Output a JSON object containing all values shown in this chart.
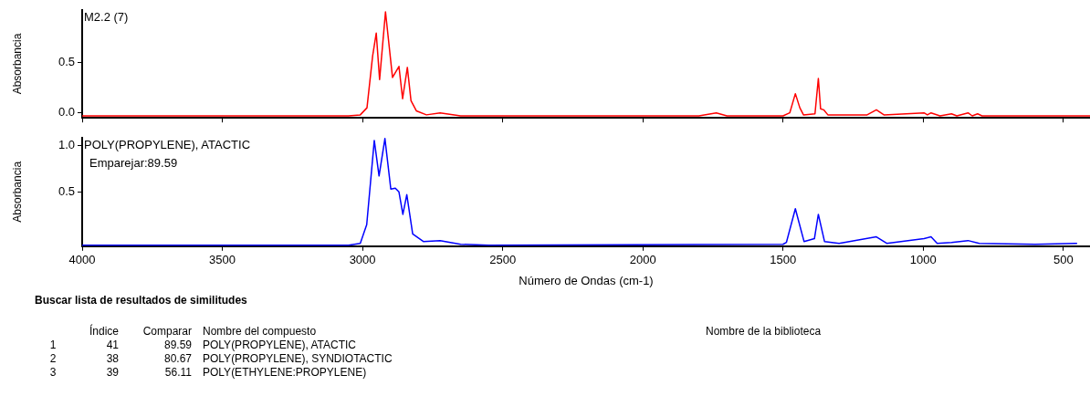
{
  "chart_data": [
    {
      "type": "line",
      "ylabel": "Absorbancia",
      "xlim": [
        4000,
        405
      ],
      "ylim": [
        -0.05,
        1.02
      ],
      "xticks": [
        4000,
        3500,
        3000,
        2500,
        2000,
        1500,
        1000,
        500
      ],
      "yticks": [
        {
          "value": 0,
          "label": "0.0"
        },
        0.5
      ],
      "tick_labels": "y",
      "grid": false,
      "marker": "none",
      "series": [
        {
          "name": "M2.2 (7)",
          "color": "#ff0000",
          "x": [
            4000,
            3500,
            3050,
            3008,
            2984,
            2964,
            2951,
            2939,
            2918,
            2893,
            2870,
            2857,
            2840,
            2827,
            2808,
            2772,
            2723,
            2650,
            1800,
            1738,
            1700,
            1500,
            1476,
            1456,
            1440,
            1427,
            1386,
            1374,
            1366,
            1355,
            1340,
            1200,
            1167,
            1140,
            997,
            985,
            972,
            940,
            899,
            880,
            840,
            825,
            806,
            790,
            405
          ],
          "values": [
            -0.03,
            -0.03,
            -0.03,
            -0.02,
            0.05,
            0.56,
            0.79,
            0.33,
            1.0,
            0.35,
            0.46,
            0.14,
            0.45,
            0.12,
            0.02,
            -0.02,
            0.0,
            -0.03,
            -0.03,
            0.0,
            -0.03,
            -0.03,
            0.0,
            0.19,
            0.05,
            -0.02,
            -0.01,
            0.34,
            0.04,
            0.03,
            -0.02,
            -0.02,
            0.03,
            -0.02,
            0.0,
            -0.02,
            0.0,
            -0.03,
            -0.01,
            -0.03,
            0.0,
            -0.03,
            -0.01,
            -0.03,
            -0.03
          ]
        }
      ]
    },
    {
      "type": "line",
      "xlabel": "Número de Ondas (cm-1)",
      "ylabel": "Absorbancia",
      "xlim": [
        4000,
        405
      ],
      "ylim": [
        -0.08,
        1.08
      ],
      "xticks": [
        4000,
        3500,
        3000,
        2500,
        2000,
        1500,
        1000,
        500
      ],
      "yticks": [
        0.5,
        {
          "value": 1,
          "label": "1.0"
        }
      ],
      "grid": false,
      "marker": "none",
      "annotations": [
        "Emparejar:89.59"
      ],
      "series": [
        {
          "name": "POLY(PROPYLENE), ATACTIC",
          "color": "#0000ff",
          "x": [
            4000,
            3500,
            3050,
            3008,
            2985,
            2958,
            2941,
            2920,
            2899,
            2883,
            2870,
            2856,
            2842,
            2821,
            2783,
            2723,
            2650,
            2550,
            1500,
            1488,
            1456,
            1425,
            1388,
            1374,
            1352,
            1300,
            1167,
            1130,
            997,
            972,
            950,
            899,
            840,
            800,
            600,
            457,
            451
          ],
          "values": [
            -0.07,
            -0.07,
            -0.07,
            -0.05,
            0.15,
            1.05,
            0.67,
            1.07,
            0.53,
            0.54,
            0.5,
            0.26,
            0.47,
            0.05,
            -0.03,
            -0.02,
            -0.06,
            -0.07,
            -0.06,
            -0.04,
            0.32,
            -0.03,
            0.0,
            0.26,
            -0.03,
            -0.05,
            0.02,
            -0.05,
            0.0,
            0.02,
            -0.05,
            -0.04,
            -0.02,
            -0.05,
            -0.06,
            -0.05,
            -0.05
          ]
        }
      ]
    },
    {
      "type": "other",
      "title": "Buscar lista de resultados de similitudes",
      "annotations": [
        "Índice",
        "Comparar",
        "Nombre del compuesto",
        "Nombre de la biblioteca",
        "1",
        "41",
        "89.59",
        "POLY(PROPYLENE), ATACTIC",
        "2",
        "38",
        "80.67",
        "POLY(PROPYLENE), SYNDIOTACTIC",
        "3",
        "39",
        "56.11",
        "POLY(ETHYLENE:PROPYLENE)"
      ]
    }
  ]
}
